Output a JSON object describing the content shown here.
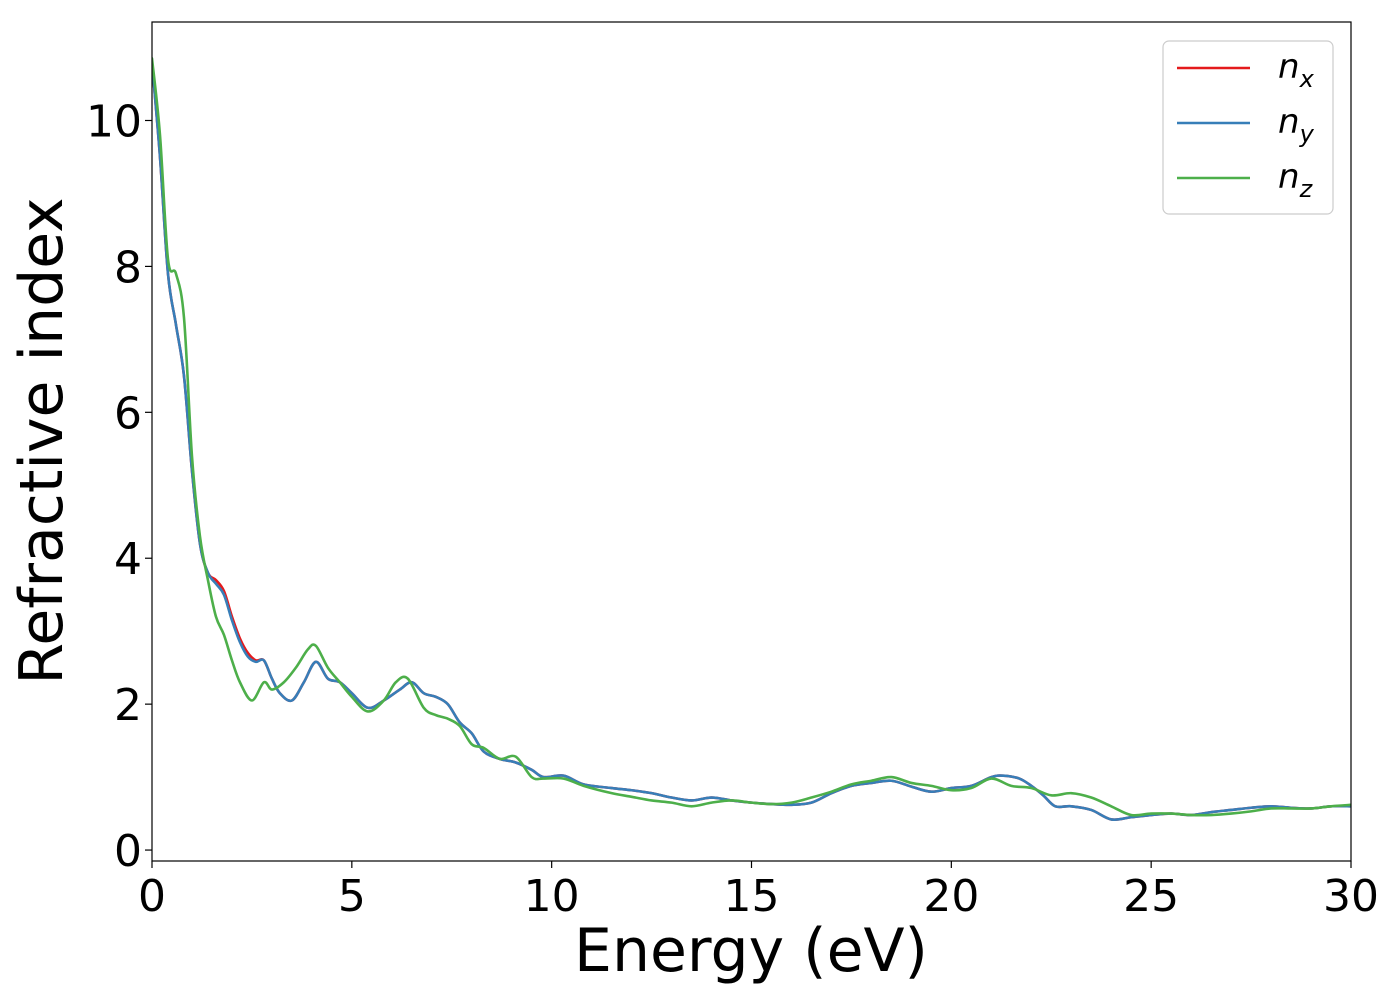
{
  "chart_data": {
    "type": "line",
    "xlabel": "Energy (eV)",
    "ylabel": "Refractive index",
    "xlim": [
      0,
      30
    ],
    "ylim": [
      -0.15,
      11.35
    ],
    "xticks": [
      0,
      5,
      10,
      15,
      20,
      25,
      30
    ],
    "yticks": [
      0,
      2,
      4,
      6,
      8,
      10
    ],
    "grid": false,
    "legend_position": "top-right",
    "series": [
      {
        "name": "n",
        "subscript": "x",
        "color": "#e41a1c",
        "x": [
          0,
          0.2,
          0.4,
          0.6,
          0.8,
          1.0,
          1.2,
          1.4,
          1.6,
          1.8,
          2.0,
          2.2,
          2.4,
          2.6,
          2.8,
          3.0,
          3.2,
          3.5,
          3.8,
          4.1,
          4.4,
          4.7,
          5.0,
          5.4,
          5.8,
          6.2,
          6.5,
          6.8,
          7.1,
          7.4,
          7.7,
          8.0,
          8.3,
          8.7,
          9.1,
          9.5,
          9.8,
          10.3,
          10.8,
          11.5,
          12.0,
          12.5,
          13.0,
          13.5,
          14.0,
          14.5,
          15.0,
          15.5,
          16.0,
          16.5,
          17.0,
          17.5,
          18.0,
          18.5,
          19.0,
          19.5,
          20.0,
          20.5,
          21.0,
          21.3,
          21.7,
          22.0,
          22.3,
          22.6,
          23.0,
          23.5,
          24.0,
          24.5,
          25.0,
          25.5,
          26.0,
          26.5,
          27.0,
          27.5,
          28.0,
          28.5,
          29.0,
          29.5,
          30.0
        ],
        "values": [
          10.8,
          9.5,
          7.9,
          7.2,
          6.5,
          5.2,
          4.2,
          3.8,
          3.7,
          3.55,
          3.2,
          2.9,
          2.7,
          2.6,
          2.6,
          2.35,
          2.15,
          2.05,
          2.3,
          2.58,
          2.35,
          2.3,
          2.15,
          1.95,
          2.05,
          2.2,
          2.3,
          2.15,
          2.1,
          2.0,
          1.75,
          1.6,
          1.35,
          1.25,
          1.2,
          1.1,
          1.0,
          1.02,
          0.9,
          0.85,
          0.82,
          0.78,
          0.72,
          0.68,
          0.72,
          0.68,
          0.65,
          0.63,
          0.62,
          0.65,
          0.78,
          0.88,
          0.92,
          0.95,
          0.87,
          0.8,
          0.85,
          0.88,
          1.0,
          1.02,
          0.98,
          0.88,
          0.75,
          0.6,
          0.6,
          0.55,
          0.42,
          0.45,
          0.48,
          0.5,
          0.48,
          0.52,
          0.55,
          0.58,
          0.6,
          0.58,
          0.57,
          0.6,
          0.6
        ]
      },
      {
        "name": "n",
        "subscript": "y",
        "color": "#377eb8",
        "x": [
          0,
          0.2,
          0.4,
          0.6,
          0.8,
          1.0,
          1.2,
          1.4,
          1.6,
          1.8,
          2.0,
          2.2,
          2.4,
          2.6,
          2.8,
          3.0,
          3.2,
          3.5,
          3.8,
          4.1,
          4.4,
          4.7,
          5.0,
          5.4,
          5.8,
          6.2,
          6.5,
          6.8,
          7.1,
          7.4,
          7.7,
          8.0,
          8.3,
          8.7,
          9.1,
          9.5,
          9.8,
          10.3,
          10.8,
          11.5,
          12.0,
          12.5,
          13.0,
          13.5,
          14.0,
          14.5,
          15.0,
          15.5,
          16.0,
          16.5,
          17.0,
          17.5,
          18.0,
          18.5,
          19.0,
          19.5,
          20.0,
          20.5,
          21.0,
          21.3,
          21.7,
          22.0,
          22.3,
          22.6,
          23.0,
          23.5,
          24.0,
          24.5,
          25.0,
          25.5,
          26.0,
          26.5,
          27.0,
          27.5,
          28.0,
          28.5,
          29.0,
          29.5,
          30.0
        ],
        "values": [
          10.8,
          9.5,
          7.9,
          7.2,
          6.5,
          5.2,
          4.2,
          3.8,
          3.65,
          3.5,
          3.15,
          2.85,
          2.65,
          2.58,
          2.6,
          2.35,
          2.15,
          2.05,
          2.3,
          2.58,
          2.35,
          2.3,
          2.15,
          1.95,
          2.05,
          2.2,
          2.3,
          2.15,
          2.1,
          2.0,
          1.75,
          1.6,
          1.35,
          1.25,
          1.2,
          1.1,
          1.0,
          1.02,
          0.9,
          0.85,
          0.82,
          0.78,
          0.72,
          0.68,
          0.72,
          0.68,
          0.65,
          0.63,
          0.62,
          0.65,
          0.78,
          0.88,
          0.92,
          0.95,
          0.87,
          0.8,
          0.85,
          0.88,
          1.0,
          1.02,
          0.98,
          0.88,
          0.75,
          0.6,
          0.6,
          0.55,
          0.42,
          0.45,
          0.48,
          0.5,
          0.48,
          0.52,
          0.55,
          0.58,
          0.6,
          0.58,
          0.57,
          0.6,
          0.6
        ]
      },
      {
        "name": "n",
        "subscript": "z",
        "color": "#4daf4a",
        "x": [
          0,
          0.2,
          0.4,
          0.6,
          0.8,
          1.0,
          1.2,
          1.4,
          1.6,
          1.8,
          2.0,
          2.2,
          2.5,
          2.8,
          3.0,
          3.3,
          3.6,
          3.9,
          4.1,
          4.4,
          4.7,
          5.0,
          5.4,
          5.8,
          6.1,
          6.4,
          6.8,
          7.1,
          7.4,
          7.7,
          8.0,
          8.3,
          8.7,
          9.1,
          9.5,
          9.8,
          10.3,
          10.8,
          11.5,
          12.0,
          12.5,
          13.0,
          13.5,
          14.0,
          14.5,
          15.0,
          15.5,
          16.0,
          16.5,
          17.0,
          17.5,
          18.0,
          18.5,
          19.0,
          19.5,
          20.0,
          20.5,
          21.0,
          21.5,
          22.0,
          22.5,
          23.0,
          23.5,
          24.0,
          24.5,
          25.0,
          25.5,
          26.0,
          26.5,
          27.0,
          27.5,
          28.0,
          28.5,
          29.0,
          29.5,
          30.0
        ],
        "values": [
          10.85,
          9.8,
          8.1,
          7.9,
          7.3,
          5.4,
          4.3,
          3.7,
          3.2,
          2.95,
          2.6,
          2.3,
          2.05,
          2.3,
          2.2,
          2.3,
          2.5,
          2.75,
          2.8,
          2.5,
          2.3,
          2.1,
          1.9,
          2.05,
          2.3,
          2.35,
          1.95,
          1.85,
          1.8,
          1.7,
          1.45,
          1.4,
          1.25,
          1.28,
          1.0,
          0.98,
          0.98,
          0.88,
          0.78,
          0.73,
          0.68,
          0.65,
          0.6,
          0.65,
          0.68,
          0.65,
          0.63,
          0.65,
          0.72,
          0.8,
          0.9,
          0.95,
          1.0,
          0.92,
          0.88,
          0.82,
          0.85,
          0.98,
          0.88,
          0.85,
          0.75,
          0.78,
          0.72,
          0.6,
          0.48,
          0.5,
          0.5,
          0.48,
          0.48,
          0.5,
          0.53,
          0.57,
          0.57,
          0.57,
          0.6,
          0.62
        ]
      }
    ]
  }
}
